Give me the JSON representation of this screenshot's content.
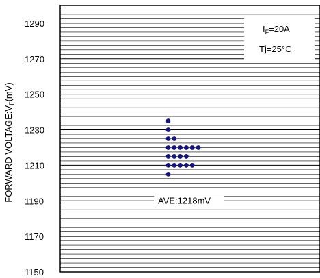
{
  "chart_data": {
    "type": "scatter",
    "title": "",
    "xlabel": "",
    "ylabel": "FORWARD VOLTAGE:V",
    "ylabel_sub": "F",
    "ylabel_unit": "(mV)",
    "ylim": [
      1150,
      1300
    ],
    "yticks": [
      1150,
      1170,
      1190,
      1210,
      1230,
      1250,
      1270,
      1290
    ],
    "minor_grid_step": 2.5,
    "grid": true,
    "marker_color": "#14147a",
    "conditions": {
      "if_main": "I",
      "if_sub": "F",
      "if_value": "=20A",
      "tj": "Tj=25°C"
    },
    "average_label": "AVE:1218mV",
    "average_value": 1218,
    "points": [
      {
        "x": 0,
        "y": 1235
      },
      {
        "x": 0,
        "y": 1230
      },
      {
        "x": 0,
        "y": 1225
      },
      {
        "x": 1,
        "y": 1225
      },
      {
        "x": 0,
        "y": 1220
      },
      {
        "x": 1,
        "y": 1220
      },
      {
        "x": 2,
        "y": 1220
      },
      {
        "x": 3,
        "y": 1220
      },
      {
        "x": 4,
        "y": 1220
      },
      {
        "x": 5,
        "y": 1220
      },
      {
        "x": 0,
        "y": 1215
      },
      {
        "x": 1,
        "y": 1215
      },
      {
        "x": 2,
        "y": 1215
      },
      {
        "x": 3,
        "y": 1215
      },
      {
        "x": 0,
        "y": 1210
      },
      {
        "x": 1,
        "y": 1210
      },
      {
        "x": 2,
        "y": 1210
      },
      {
        "x": 3,
        "y": 1210
      },
      {
        "x": 4,
        "y": 1210
      },
      {
        "x": 0,
        "y": 1205
      }
    ]
  }
}
